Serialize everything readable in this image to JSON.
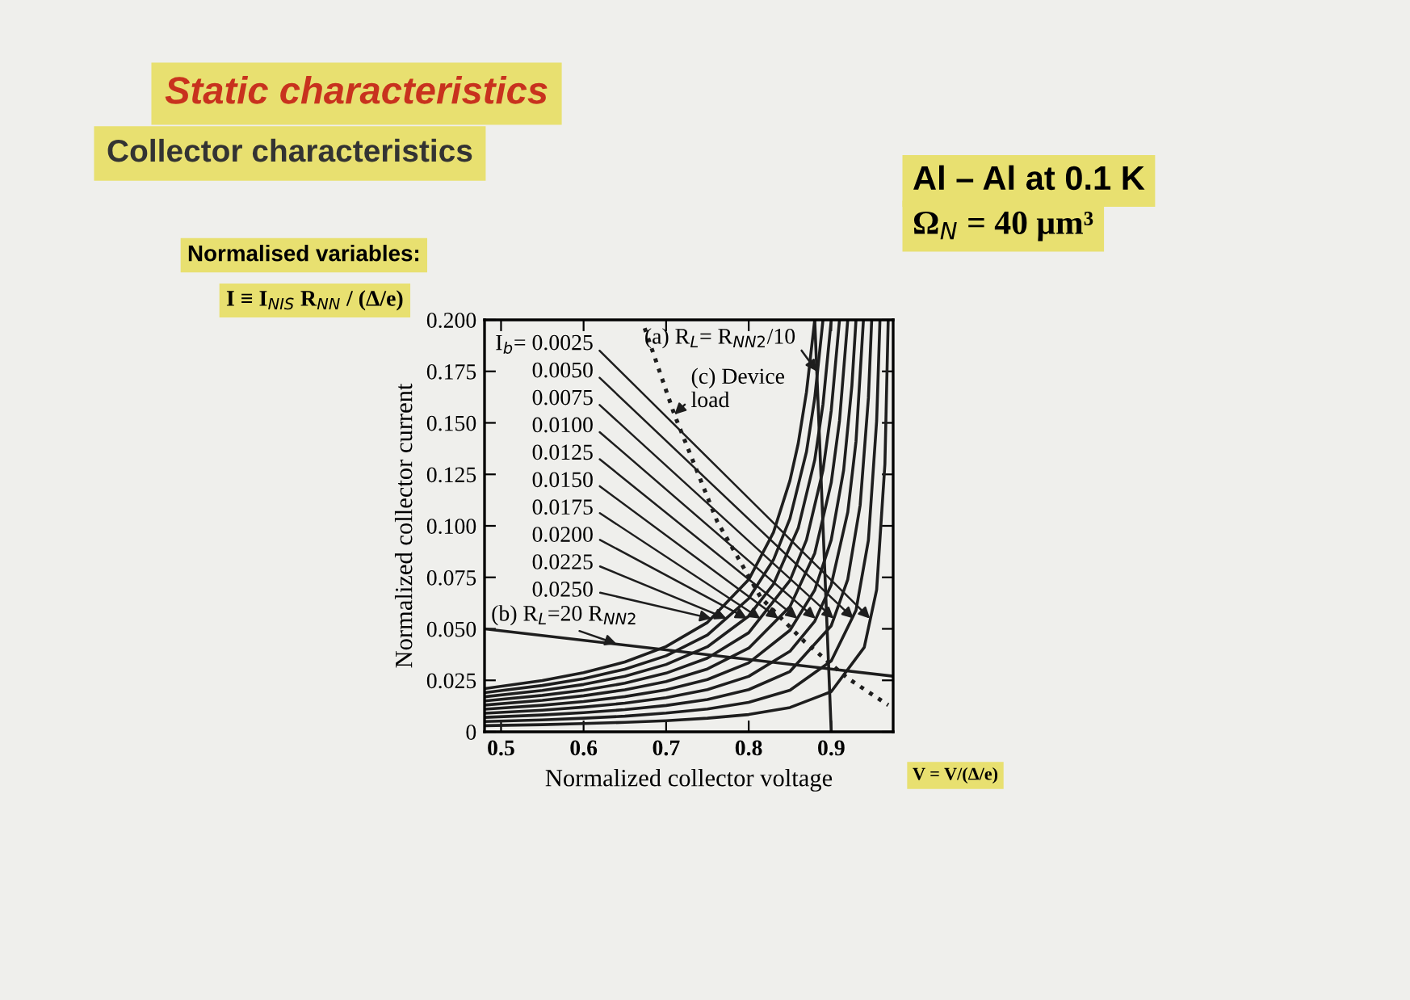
{
  "chart_data": {
    "type": "line",
    "title": "Static characteristics",
    "subtitle": "Collector characteristics",
    "xlabel": "Normalized collector voltage",
    "ylabel": "Normalized collector current",
    "annotations": [
      "Al – Al at 0.1 K",
      "Ω$_{N}$ = 40 μm³",
      "Normalised variables:",
      "I ≡ I$_{NIS}$ R$_{NN}$ / (Δ/e)",
      "V = V/(Δ/e)",
      {
        "text": "I$_{b}$= 0.0025",
        "x": 0.947,
        "y": 0.055
      },
      {
        "text": "0.0050",
        "x": 0.927,
        "y": 0.055
      },
      {
        "text": "0.0075",
        "x": 0.903,
        "y": 0.055
      },
      {
        "text": "0.0100",
        "x": 0.881,
        "y": 0.055
      },
      {
        "text": "0.0125",
        "x": 0.859,
        "y": 0.055
      },
      {
        "text": "0.0150",
        "x": 0.836,
        "y": 0.055
      },
      {
        "text": "0.0175",
        "x": 0.814,
        "y": 0.055
      },
      {
        "text": "0.0200",
        "x": 0.798,
        "y": 0.055
      },
      {
        "text": "0.0225",
        "x": 0.773,
        "y": 0.055
      },
      {
        "text": "0.0250",
        "x": 0.755,
        "y": 0.055
      },
      {
        "text": "(a) R$_{L}$= R$_{NN2}$/10",
        "x": 0.8825,
        "y": 0.175
      },
      {
        "text": "(b) R$_{L}$=20 R$_{NN2}$",
        "x": 0.64,
        "y": 0.0427
      },
      {
        "text": "(c) Device\nload",
        "x": 0.71,
        "y": 0.154
      }
    ],
    "xlim": [
      0.48,
      0.975
    ],
    "xticks": [
      0.5,
      0.6,
      0.7,
      0.8,
      0.9
    ],
    "ylim": [
      0,
      0.2
    ],
    "yticks": [
      0,
      {
        "value": 0.025,
        "label": "0.025"
      },
      {
        "value": 0.05,
        "label": "0.050"
      },
      {
        "value": 0.075,
        "label": "0.075"
      },
      {
        "value": 0.1,
        "label": "0.100"
      },
      {
        "value": 0.125,
        "label": "0.125"
      },
      {
        "value": 0.15,
        "label": "0.150"
      },
      {
        "value": 0.175,
        "label": "0.175"
      },
      {
        "value": 0.2,
        "label": "0.200"
      }
    ],
    "grid": false,
    "legend": false,
    "marker": "none",
    "line_style": "solid",
    "series": [
      {
        "color": "#1e1e1e",
        "x": [
          0.48,
          0.55,
          0.6,
          0.65,
          0.7,
          0.75,
          0.8,
          0.85,
          0.9,
          0.94,
          0.955,
          0.965,
          0.969
        ],
        "values": [
          0.003,
          0.0035,
          0.004,
          0.0046,
          0.0054,
          0.0066,
          0.0084,
          0.0118,
          0.0195,
          0.041,
          0.069,
          0.13,
          0.2
        ]
      },
      {
        "color": "#1e1e1e",
        "x": [
          0.48,
          0.55,
          0.6,
          0.65,
          0.7,
          0.75,
          0.8,
          0.85,
          0.9,
          0.93,
          0.945,
          0.955,
          0.959
        ],
        "values": [
          0.005,
          0.0058,
          0.0066,
          0.0076,
          0.0091,
          0.0111,
          0.0143,
          0.0202,
          0.0344,
          0.059,
          0.093,
          0.151,
          0.2
        ]
      },
      {
        "color": "#1e1e1e",
        "x": [
          0.48,
          0.55,
          0.6,
          0.65,
          0.7,
          0.75,
          0.8,
          0.85,
          0.9,
          0.92,
          0.935,
          0.945,
          0.949
        ],
        "values": [
          0.007,
          0.0082,
          0.0093,
          0.0108,
          0.0128,
          0.0157,
          0.0205,
          0.0293,
          0.0515,
          0.074,
          0.11,
          0.162,
          0.2
        ]
      },
      {
        "color": "#1e1e1e",
        "x": [
          0.48,
          0.55,
          0.6,
          0.65,
          0.7,
          0.75,
          0.8,
          0.85,
          0.88,
          0.9,
          0.92,
          0.93,
          0.939
        ],
        "values": [
          0.009,
          0.0105,
          0.012,
          0.0139,
          0.0166,
          0.0205,
          0.0269,
          0.0391,
          0.0537,
          0.0714,
          0.1066,
          0.141,
          0.2
        ]
      },
      {
        "color": "#1e1e1e",
        "x": [
          0.48,
          0.55,
          0.6,
          0.65,
          0.7,
          0.75,
          0.8,
          0.85,
          0.88,
          0.9,
          0.915,
          0.925,
          0.93
        ],
        "values": [
          0.011,
          0.0129,
          0.0147,
          0.0171,
          0.0204,
          0.0254,
          0.0335,
          0.0493,
          0.0688,
          0.0932,
          0.127,
          0.168,
          0.2
        ]
      },
      {
        "color": "#1e1e1e",
        "x": [
          0.48,
          0.55,
          0.6,
          0.65,
          0.7,
          0.75,
          0.8,
          0.85,
          0.88,
          0.9,
          0.91,
          0.92
        ],
        "values": [
          0.013,
          0.0153,
          0.0175,
          0.0204,
          0.0244,
          0.0305,
          0.0406,
          0.0608,
          0.0867,
          0.121,
          0.151,
          0.2
        ]
      },
      {
        "color": "#1e1e1e",
        "x": [
          0.48,
          0.55,
          0.6,
          0.65,
          0.7,
          0.75,
          0.8,
          0.85,
          0.87,
          0.89,
          0.9,
          0.91
        ],
        "values": [
          0.015,
          0.0177,
          0.0202,
          0.0236,
          0.0285,
          0.0358,
          0.0481,
          0.0735,
          0.0932,
          0.127,
          0.156,
          0.2
        ]
      },
      {
        "color": "#1e1e1e",
        "x": [
          0.48,
          0.55,
          0.6,
          0.65,
          0.7,
          0.75,
          0.8,
          0.83,
          0.86,
          0.88,
          0.89,
          0.9
        ],
        "values": [
          0.017,
          0.0201,
          0.023,
          0.027,
          0.0327,
          0.0413,
          0.0562,
          0.0717,
          0.0989,
          0.132,
          0.159,
          0.2
        ]
      },
      {
        "color": "#1e1e1e",
        "x": [
          0.48,
          0.55,
          0.6,
          0.65,
          0.7,
          0.75,
          0.8,
          0.83,
          0.85,
          0.87,
          0.88,
          0.89
        ],
        "values": [
          0.019,
          0.0225,
          0.0258,
          0.0304,
          0.0369,
          0.047,
          0.0647,
          0.0835,
          0.1036,
          0.136,
          0.162,
          0.2
        ]
      },
      {
        "color": "#1e1e1e",
        "x": [
          0.48,
          0.55,
          0.6,
          0.65,
          0.7,
          0.75,
          0.8,
          0.83,
          0.85,
          0.86,
          0.87,
          0.88
        ],
        "values": [
          0.021,
          0.0249,
          0.0287,
          0.0339,
          0.0414,
          0.0531,
          0.0739,
          0.0968,
          0.122,
          0.14,
          0.165,
          0.2
        ]
      },
      {
        "color": "#1e1e1e",
        "x": [
          0.9,
          0.88
        ],
        "values": [
          0,
          0.2
        ]
      },
      {
        "color": "#1e1e1e",
        "x": [
          0.48,
          0.975
        ],
        "values": [
          0.05,
          0.027
        ]
      },
      {
        "color": "#1e1e1e",
        "line_style": "dotted",
        "x": [
          0.674,
          0.71,
          0.762,
          0.815,
          0.867,
          0.92,
          0.969
        ],
        "values": [
          0.196,
          0.154,
          0.102,
          0.065,
          0.044,
          0.026,
          0.013
        ]
      }
    ]
  }
}
